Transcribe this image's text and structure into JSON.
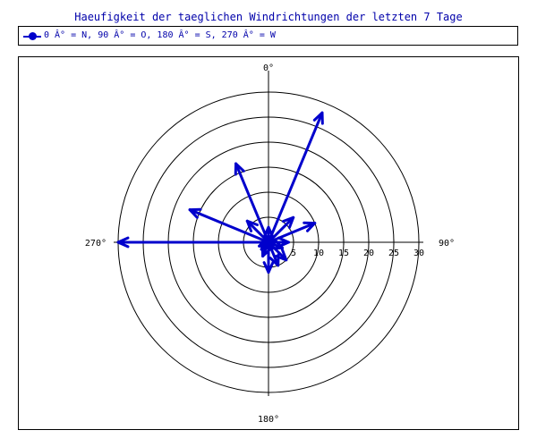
{
  "chart_data": {
    "type": "polar_vector",
    "title": "Haeufigkeit der taeglichen Windrichtungen der letzten 7 Tage",
    "legend": [
      {
        "label": "0 Â° = N, 90 Â° = O, 180 Â° = S, 270 Â° = W"
      }
    ],
    "direction_labels": {
      "north": "0°",
      "east": "90°",
      "south": "180°",
      "west": "270°"
    },
    "radial_ticks": [
      "5",
      "10",
      "15",
      "20",
      "25",
      "30"
    ],
    "rmax": 30,
    "grid": true,
    "series": [
      {
        "points": [
          {
            "angle": 0,
            "value": 3
          },
          {
            "angle": 22.5,
            "value": 28
          },
          {
            "angle": 45,
            "value": 7
          },
          {
            "angle": 67.5,
            "value": 10
          },
          {
            "angle": 90,
            "value": 4
          },
          {
            "angle": 112.5,
            "value": 3
          },
          {
            "angle": 135,
            "value": 5
          },
          {
            "angle": 157.5,
            "value": 5
          },
          {
            "angle": 180,
            "value": 6
          },
          {
            "angle": 202.5,
            "value": 3
          },
          {
            "angle": 225,
            "value": 2
          },
          {
            "angle": 247.5,
            "value": 2
          },
          {
            "angle": 270,
            "value": 30
          },
          {
            "angle": 292.5,
            "value": 17
          },
          {
            "angle": 315,
            "value": 6
          },
          {
            "angle": 337.5,
            "value": 17
          }
        ]
      }
    ]
  },
  "colors": {
    "series": "#0000cc",
    "title": "#0000aa",
    "grid": "#000000"
  }
}
